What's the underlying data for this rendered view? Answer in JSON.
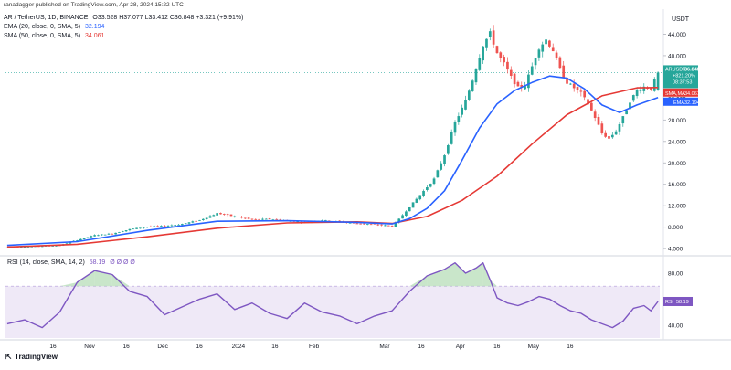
{
  "header": {
    "publisher": "ranadagger published on TradingView.com, Apr 28, 2024 15:22 UTC",
    "symbol": "AR / TetherUS, 1D, BINANCE",
    "ohlc": "O33.528 H37.077 L33.412 C36.848 +3.321 (+9.91%)",
    "ema_label": "EMA (20, close, 0, SMA, 5)",
    "ema_value": "32.194",
    "sma_label": "SMA (50, close, 0, SMA, 5)",
    "sma_value": "34.061",
    "currency": "USDT"
  },
  "price_tags": {
    "price_label": "ARUSDT",
    "price_value": "36.848",
    "price_change": "+821.20%",
    "countdown": "08:37:53",
    "sma_label": "SMA,MA",
    "sma_value": "34.061",
    "ema_label": "EMA",
    "ema_value": "32.194"
  },
  "rsi_header": {
    "label": "RSI (14, close, SMA, 14, 2)",
    "value": "58.19",
    "extras": "Ø Ø Ø Ø"
  },
  "rsi_tag": {
    "label": "RSI",
    "value": "58.19"
  },
  "logo": {
    "text": "TradingView"
  },
  "colors": {
    "up": "#26a69a",
    "down": "#ef5350",
    "ema": "#2962ff",
    "sma": "#e53935",
    "rsi": "#7e57c2",
    "rsi_band": "#ede7f6",
    "overbought": "#2e7d32"
  },
  "chart_data": {
    "type": "candlestick",
    "title": "AR / TetherUS, 1D, BINANCE",
    "x_ticks": [
      "16",
      "Nov",
      "16",
      "Dec",
      "16",
      "2024",
      "16",
      "Feb",
      "Mar",
      "16",
      "Apr",
      "16",
      "May",
      "16"
    ],
    "y_ticks": [
      "4.000",
      "8.000",
      "12.000",
      "16.000",
      "20.000",
      "24.000",
      "28.000",
      "32.000",
      "36.000",
      "40.000",
      "44.000"
    ],
    "ylim": [
      3,
      48
    ],
    "rsi_ticks": [
      "40.00",
      "60.00",
      "80.00"
    ],
    "rsi_ylim": [
      30,
      92
    ],
    "rsi_band": [
      30,
      70
    ],
    "price_path": [
      [
        0,
        4.2
      ],
      [
        15,
        4.6
      ],
      [
        20,
        5.6
      ],
      [
        25,
        6.5
      ],
      [
        30,
        6.8
      ],
      [
        35,
        7.6
      ],
      [
        40,
        8.1
      ],
      [
        45,
        8.2
      ],
      [
        50,
        8.6
      ],
      [
        55,
        9.3
      ],
      [
        60,
        10.6
      ],
      [
        65,
        10.0
      ],
      [
        70,
        9.4
      ],
      [
        75,
        9.5
      ],
      [
        80,
        9.2
      ],
      [
        85,
        8.9
      ],
      [
        90,
        9.3
      ],
      [
        95,
        9.0
      ],
      [
        100,
        8.7
      ],
      [
        105,
        8.5
      ],
      [
        110,
        8.2
      ],
      [
        112,
        9.5
      ],
      [
        115,
        11.8
      ],
      [
        118,
        14.0
      ],
      [
        122,
        17.0
      ],
      [
        125,
        21.5
      ],
      [
        128,
        27.5
      ],
      [
        131,
        31.5
      ],
      [
        133,
        35.5
      ],
      [
        136,
        42.0
      ],
      [
        138,
        44.2
      ],
      [
        140,
        40.5
      ],
      [
        142,
        38.5
      ],
      [
        144,
        36.0
      ],
      [
        146,
        34.0
      ],
      [
        148,
        34.5
      ],
      [
        150,
        38.0
      ],
      [
        152,
        41.5
      ],
      [
        154,
        43.0
      ],
      [
        156,
        41.0
      ],
      [
        158,
        37.5
      ],
      [
        160,
        35.0
      ],
      [
        162,
        34.0
      ],
      [
        164,
        33.0
      ],
      [
        166,
        31.0
      ],
      [
        168,
        28.5
      ],
      [
        170,
        25.5
      ],
      [
        172,
        24.5
      ],
      [
        174,
        26.0
      ],
      [
        176,
        28.5
      ],
      [
        178,
        31.5
      ],
      [
        180,
        33.5
      ],
      [
        182,
        34.2
      ],
      [
        184,
        33.8
      ],
      [
        186,
        36.85
      ]
    ],
    "ema20": [
      [
        0,
        4.6
      ],
      [
        20,
        5.3
      ],
      [
        40,
        7.4
      ],
      [
        60,
        9.1
      ],
      [
        80,
        9.2
      ],
      [
        100,
        8.9
      ],
      [
        110,
        8.6
      ],
      [
        115,
        9.6
      ],
      [
        120,
        11.5
      ],
      [
        125,
        14.8
      ],
      [
        130,
        20.5
      ],
      [
        135,
        26.5
      ],
      [
        140,
        31.0
      ],
      [
        145,
        33.5
      ],
      [
        150,
        35.0
      ],
      [
        155,
        36.2
      ],
      [
        160,
        35.8
      ],
      [
        165,
        33.8
      ],
      [
        170,
        30.8
      ],
      [
        175,
        29.4
      ],
      [
        180,
        30.8
      ],
      [
        186,
        32.19
      ]
    ],
    "sma50": [
      [
        0,
        4.3
      ],
      [
        20,
        4.8
      ],
      [
        40,
        6.2
      ],
      [
        60,
        7.8
      ],
      [
        80,
        8.8
      ],
      [
        100,
        9.0
      ],
      [
        110,
        8.7
      ],
      [
        120,
        10.0
      ],
      [
        130,
        13.0
      ],
      [
        140,
        17.5
      ],
      [
        150,
        23.5
      ],
      [
        160,
        29.0
      ],
      [
        170,
        32.5
      ],
      [
        180,
        34.0
      ],
      [
        186,
        34.06
      ]
    ],
    "rsi": [
      [
        0,
        41
      ],
      [
        5,
        44
      ],
      [
        10,
        38
      ],
      [
        15,
        50
      ],
      [
        20,
        73
      ],
      [
        25,
        82
      ],
      [
        30,
        79
      ],
      [
        35,
        66
      ],
      [
        40,
        62
      ],
      [
        45,
        48
      ],
      [
        50,
        54
      ],
      [
        55,
        60
      ],
      [
        60,
        64
      ],
      [
        65,
        52
      ],
      [
        70,
        57
      ],
      [
        75,
        49
      ],
      [
        80,
        45
      ],
      [
        85,
        57
      ],
      [
        90,
        50
      ],
      [
        95,
        47
      ],
      [
        100,
        41
      ],
      [
        105,
        47
      ],
      [
        110,
        51
      ],
      [
        115,
        66
      ],
      [
        120,
        78
      ],
      [
        125,
        83
      ],
      [
        128,
        88
      ],
      [
        131,
        80
      ],
      [
        134,
        84
      ],
      [
        136,
        88
      ],
      [
        138,
        75
      ],
      [
        140,
        61
      ],
      [
        143,
        57
      ],
      [
        146,
        55
      ],
      [
        149,
        58
      ],
      [
        152,
        62
      ],
      [
        155,
        60
      ],
      [
        158,
        55
      ],
      [
        161,
        51
      ],
      [
        164,
        49
      ],
      [
        167,
        44
      ],
      [
        170,
        41
      ],
      [
        173,
        38
      ],
      [
        176,
        43
      ],
      [
        179,
        53
      ],
      [
        182,
        55
      ],
      [
        184,
        51
      ],
      [
        186,
        58.19
      ]
    ],
    "last_price": 36.848,
    "last_rsi": 58.19
  }
}
